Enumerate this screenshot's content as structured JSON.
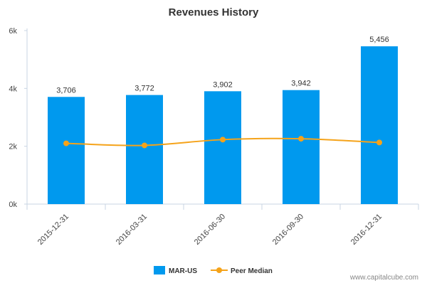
{
  "chart_data": {
    "type": "bar",
    "title": "Revenues History",
    "xlabel": "",
    "ylabel": "",
    "categories": [
      "2015-12-31",
      "2016-03-31",
      "2016-06-30",
      "2016-09-30",
      "2016-12-31"
    ],
    "ylim": [
      0,
      6000
    ],
    "yticks": [
      0,
      2000,
      4000,
      6000
    ],
    "ytick_labels": [
      "0k",
      "2k",
      "4k",
      "6k"
    ],
    "grid": false,
    "legend_position": "bottom-center",
    "series": [
      {
        "name": "MAR-US",
        "type": "bar",
        "color": "#0099ee",
        "values": [
          3706,
          3772,
          3902,
          3942,
          5456
        ],
        "data_labels": [
          "3,706",
          "3,772",
          "3,902",
          "3,942",
          "5,456"
        ]
      },
      {
        "name": "Peer Median",
        "type": "line",
        "color": "#f5a31a",
        "values": [
          2100,
          2030,
          2230,
          2260,
          2130
        ]
      }
    ]
  },
  "watermark": "www.capitalcube.com"
}
